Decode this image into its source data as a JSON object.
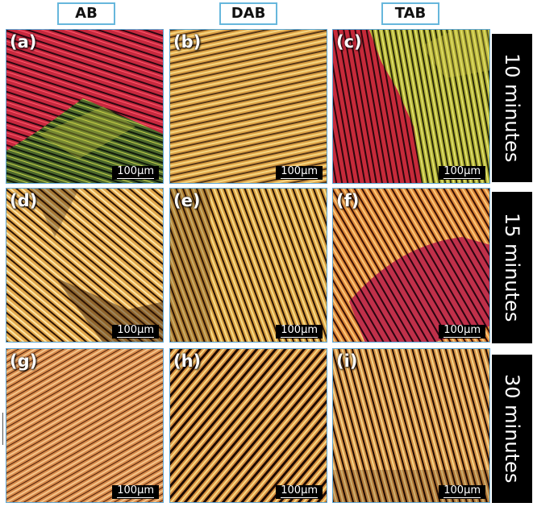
{
  "column_headers": {
    "ab": "AB",
    "dab": "DAB",
    "tab": "TAB"
  },
  "row_labels": {
    "row1": "10 minutes",
    "row2": "15 minutes",
    "row3": "30 minutes"
  },
  "panels": {
    "a": {
      "label": "(a)",
      "scale": "100µm"
    },
    "b": {
      "label": "(b)",
      "scale": "100µm"
    },
    "c": {
      "label": "(c)",
      "scale": "100µm"
    },
    "d": {
      "label": "(d)",
      "scale": "100µm"
    },
    "e": {
      "label": "(e)",
      "scale": "100µm"
    },
    "f": {
      "label": "(f)",
      "scale": "100µm"
    },
    "g": {
      "label": "(g)",
      "scale": "100µm"
    },
    "h": {
      "label": "(h)",
      "scale": "100µm"
    },
    "i": {
      "label": "(i)",
      "scale": "100µm"
    }
  },
  "colors": {
    "header_border": "#67b7dc",
    "panel_border": "#5ca6d6",
    "label_background": "#000000"
  }
}
